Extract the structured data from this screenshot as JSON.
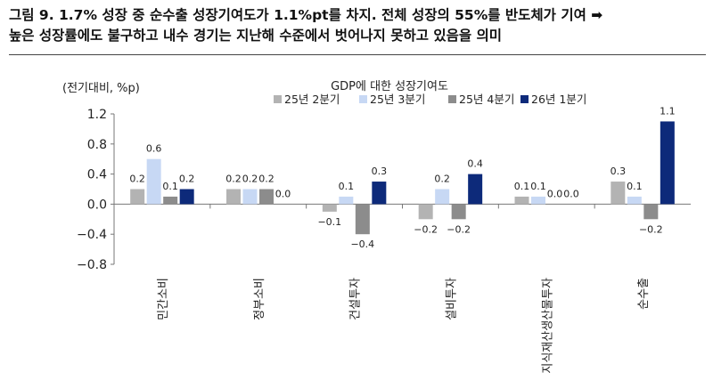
{
  "figure": {
    "title_line1": "그림 9.  1.7% 성장 중 순수출 성장기여도가 1.1%pt를 차지. 전체 성장의 55%를 반도체가 기여 ➡",
    "title_line2": "높은 성장률에도 불구하고 내수 경기는 지난해 수준에서 벗어나지 못하고 있음을 의미"
  },
  "chart_data": {
    "type": "bar",
    "title": "GDP에 대한 성장기여도",
    "ylabel": "(전기대비, %p)",
    "ylim": [
      -0.8,
      1.2
    ],
    "yticks": [
      "1.2",
      "0.8",
      "0.4",
      "0.0",
      "−0.4",
      "−0.8"
    ],
    "ytick_values": [
      1.2,
      0.8,
      0.4,
      0.0,
      -0.4,
      -0.8
    ],
    "legend_position": "top",
    "categories": [
      "민간소비",
      "정부소비",
      "건설투자",
      "설비투자",
      "지식재산생산물투자",
      "순수출"
    ],
    "series": [
      {
        "name": "25년 2분기",
        "color": "#b3b3b3",
        "values": [
          0.2,
          0.2,
          -0.1,
          -0.2,
          0.1,
          0.3
        ],
        "labels": [
          "0.2",
          "0.2",
          "−0.1",
          "−0.2",
          "0.1",
          "0.3"
        ]
      },
      {
        "name": "25년 3분기",
        "color": "#c7d8f4",
        "values": [
          0.6,
          0.2,
          0.1,
          0.2,
          0.1,
          0.1
        ],
        "labels": [
          "0.6",
          "0.2",
          "0.1",
          "0.2",
          "0.1",
          "0.1"
        ]
      },
      {
        "name": "25년 4분기",
        "color": "#8c8c8c",
        "values": [
          0.1,
          0.2,
          -0.4,
          -0.2,
          0.0,
          -0.2
        ],
        "labels": [
          "0.1",
          "0.2",
          "−0.4",
          "−0.2",
          "0.0",
          "−0.2"
        ]
      },
      {
        "name": "26년 1분기",
        "color": "#0d2a7a",
        "values": [
          0.2,
          0.0,
          0.3,
          0.4,
          0.0,
          1.1
        ],
        "labels": [
          "0.2",
          "0.0",
          "0.3",
          "0.4",
          "0.0",
          "1.1"
        ]
      }
    ]
  }
}
